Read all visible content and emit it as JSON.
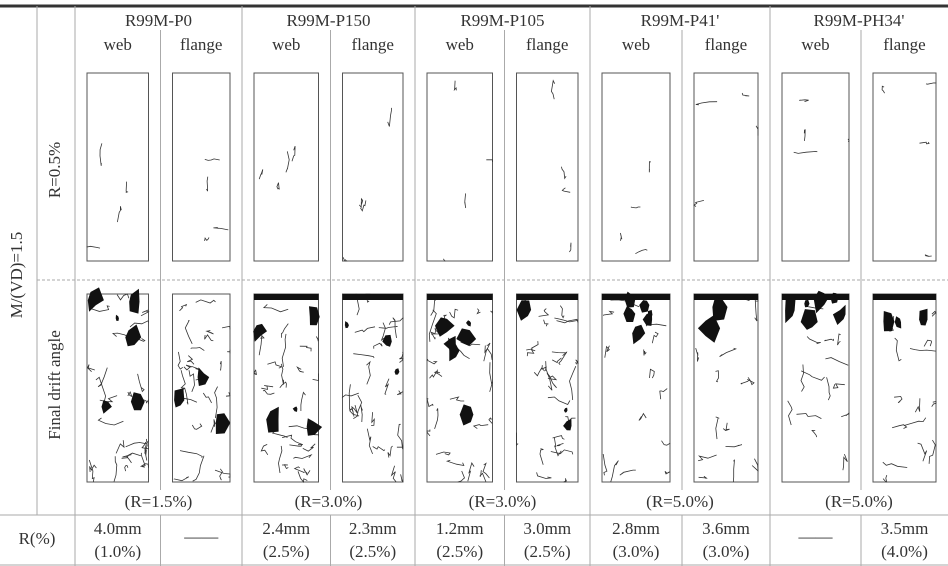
{
  "row_group_label": "M/(VD)=1.5",
  "row_labels": [
    "R=0.5%",
    "Final drift angle"
  ],
  "subheaders": [
    "web",
    "flange"
  ],
  "bottom_label": "R(%)",
  "specimens": [
    {
      "name": "R99M-P0",
      "final_drift": "(R=1.5%)",
      "measures": [
        [
          "4.0mm",
          "(1.0%)"
        ],
        [
          "——"
        ]
      ]
    },
    {
      "name": "R99M-P150",
      "final_drift": "(R=3.0%)",
      "measures": [
        [
          "2.4mm",
          "(2.5%)"
        ],
        [
          "2.3mm",
          "(2.5%)"
        ]
      ]
    },
    {
      "name": "R99M-P105",
      "final_drift": "(R=3.0%)",
      "measures": [
        [
          "1.2mm",
          "(2.5%)"
        ],
        [
          "3.0mm",
          "(2.5%)"
        ]
      ]
    },
    {
      "name": "R99M-P41'",
      "final_drift": "(R=5.0%)",
      "measures": [
        [
          "2.8mm",
          "(3.0%)"
        ],
        [
          "3.6mm",
          "(3.0%)"
        ]
      ]
    },
    {
      "name": "R99M-PH34'",
      "final_drift": "(R=5.0%)",
      "measures": [
        [
          "——"
        ],
        [
          "3.5mm",
          "(4.0%)"
        ]
      ]
    }
  ]
}
